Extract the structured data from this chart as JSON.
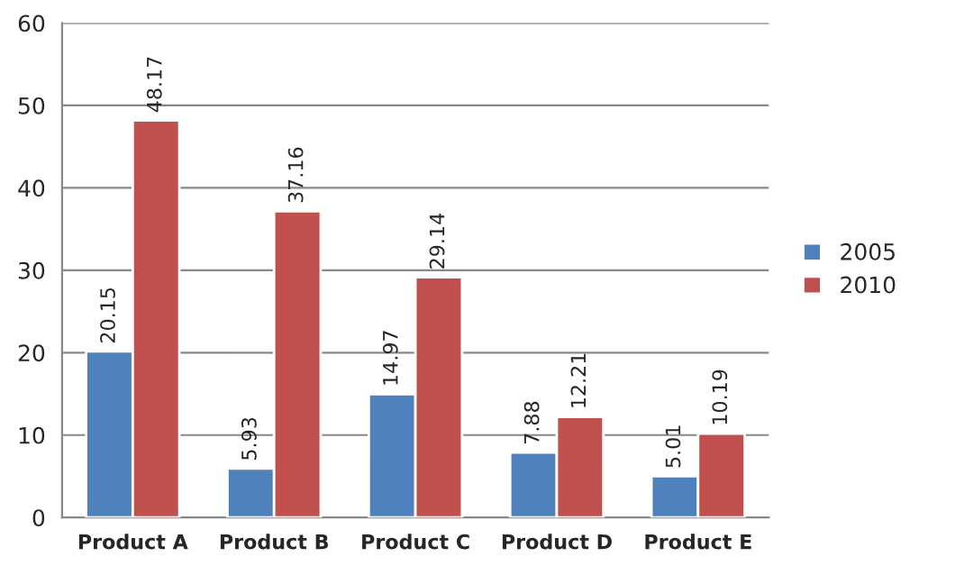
{
  "chart_data": {
    "type": "bar",
    "categories": [
      "Product A",
      "Product B",
      "Product C",
      "Product D",
      "Product E"
    ],
    "series": [
      {
        "name": "2005",
        "color": "#4f81bd",
        "values": [
          20.15,
          5.93,
          14.97,
          7.88,
          5.01
        ]
      },
      {
        "name": "2010",
        "color": "#c0504d",
        "values": [
          48.17,
          37.16,
          29.14,
          12.21,
          10.19
        ]
      }
    ],
    "ylim": [
      0,
      60
    ],
    "yticks": [
      0,
      10,
      20,
      30,
      40,
      50,
      60
    ],
    "grid": "y",
    "legend": "right",
    "data_labels": true
  }
}
